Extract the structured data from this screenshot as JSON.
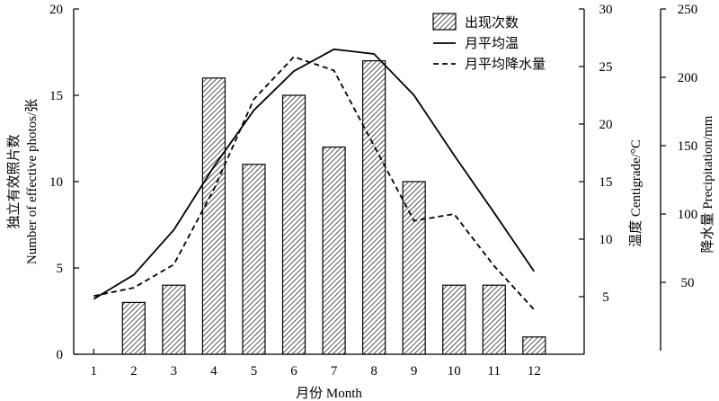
{
  "chart_data": {
    "type": "bar+line",
    "categories": [
      "1",
      "2",
      "3",
      "4",
      "5",
      "6",
      "7",
      "8",
      "9",
      "10",
      "11",
      "12"
    ],
    "xlabel": "月份 Month",
    "axes": {
      "left": {
        "label_cn": "独立有效照片数",
        "label_en": "Number of effective photos/张",
        "range": [
          0,
          20
        ],
        "ticks": [
          0,
          5,
          10,
          15,
          20
        ]
      },
      "right1": {
        "label": "温度 Centigrade/°C",
        "range": [
          0,
          30
        ],
        "ticks": [
          5,
          10,
          15,
          20,
          25,
          30
        ]
      },
      "right2": {
        "label": "降水量 Precipitation/mm",
        "range": [
          0,
          250
        ],
        "ticks": [
          50,
          100,
          150,
          200,
          250
        ]
      }
    },
    "series": [
      {
        "name": "出现次数",
        "kind": "bar",
        "axis": "left",
        "values": [
          null,
          3,
          4,
          16,
          11,
          15,
          12,
          17,
          10,
          4,
          4,
          1
        ]
      },
      {
        "name": "月平均温",
        "kind": "line",
        "style": "solid",
        "axis": "right1",
        "values": [
          4.8,
          6.9,
          10.8,
          16.3,
          21.2,
          24.6,
          26.5,
          26.1,
          22.5,
          17.3,
          12.3,
          7.2
        ]
      },
      {
        "name": "月平均降水量",
        "kind": "line",
        "style": "dashed",
        "axis": "right2",
        "values": [
          40,
          46,
          63,
          118,
          184,
          215,
          205,
          150,
          95,
          100,
          62,
          30
        ]
      }
    ],
    "legend_position": "top-right",
    "grid": false
  }
}
